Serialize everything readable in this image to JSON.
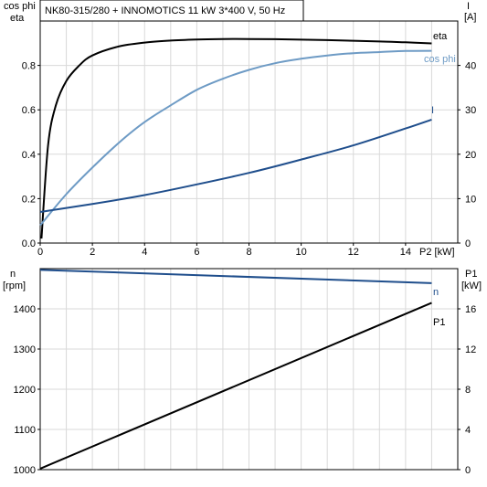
{
  "colors": {
    "eta": "#000000",
    "cos_phi": "#6e9bc5",
    "current": "#1f4e8c",
    "speed": "#1f4e8c",
    "p1": "#000000",
    "grid": "#d9d9d9"
  },
  "chart_data": [
    {
      "type": "line",
      "title": "NK80-315/280 + INNOMOTICS    11 kW    3*400 V, 50 Hz",
      "xlabel": "P2 [kW]",
      "ylabel_left": [
        "cos phi",
        "eta"
      ],
      "ylabel_right": [
        "I",
        "[A]"
      ],
      "xlim": [
        0,
        16
      ],
      "ylim_left": [
        0,
        1.0
      ],
      "ylim_right": [
        0,
        50
      ],
      "x_ticks": [
        0,
        2,
        4,
        6,
        8,
        10,
        12,
        14
      ],
      "y_ticks_left": [
        0.0,
        0.2,
        0.4,
        0.6,
        0.8
      ],
      "y_ticks_left_labels": [
        "0.0",
        "0.2",
        "0.4",
        "0.6",
        "0.8"
      ],
      "y_ticks_right": [
        0,
        10,
        20,
        30,
        40
      ],
      "y_ticks_right_labels": [
        "0",
        "10",
        "20",
        "30",
        "40"
      ],
      "grid": true,
      "series": [
        {
          "name": "eta",
          "axis": "left",
          "x": [
            0.05,
            0.3,
            0.6,
            1.0,
            1.5,
            2,
            3,
            4,
            5,
            6,
            7,
            8,
            9,
            10,
            11,
            12,
            13,
            14,
            15
          ],
          "y": [
            0.02,
            0.44,
            0.62,
            0.73,
            0.8,
            0.845,
            0.885,
            0.903,
            0.912,
            0.917,
            0.919,
            0.919,
            0.918,
            0.916,
            0.914,
            0.911,
            0.908,
            0.904,
            0.899
          ]
        },
        {
          "name": "cos phi",
          "axis": "left",
          "x": [
            0,
            1,
            2,
            3,
            4,
            5,
            6,
            7,
            8,
            9,
            10,
            11,
            12,
            13,
            14,
            15
          ],
          "y": [
            0.08,
            0.22,
            0.34,
            0.45,
            0.545,
            0.62,
            0.69,
            0.74,
            0.78,
            0.81,
            0.83,
            0.845,
            0.855,
            0.86,
            0.865,
            0.866
          ]
        },
        {
          "name": "I",
          "axis": "right",
          "x": [
            0,
            2,
            4,
            6,
            8,
            10,
            12,
            14,
            15
          ],
          "y": [
            7.0,
            8.8,
            10.8,
            13.2,
            15.8,
            18.8,
            22.0,
            25.8,
            27.8
          ]
        }
      ]
    },
    {
      "type": "line",
      "xlim": [
        0,
        16
      ],
      "ylabel_left": [
        "n",
        "[rpm]"
      ],
      "ylabel_right": [
        "P1",
        "[kW]"
      ],
      "ylim_left": [
        1000,
        1500
      ],
      "ylim_right": [
        0,
        20
      ],
      "y_ticks_left": [
        1000,
        1100,
        1200,
        1300,
        1400
      ],
      "y_ticks_left_labels": [
        "1000",
        "1100",
        "1200",
        "1300",
        "1400"
      ],
      "y_ticks_right": [
        0,
        4,
        8,
        12,
        16
      ],
      "y_ticks_right_labels": [
        "0",
        "4",
        "8",
        "12",
        "16"
      ],
      "grid": true,
      "series": [
        {
          "name": "n",
          "axis": "left",
          "x": [
            0,
            15
          ],
          "y": [
            1497,
            1464
          ]
        },
        {
          "name": "P1",
          "axis": "right",
          "x": [
            0,
            15
          ],
          "y": [
            0.1,
            16.6
          ]
        }
      ]
    }
  ]
}
